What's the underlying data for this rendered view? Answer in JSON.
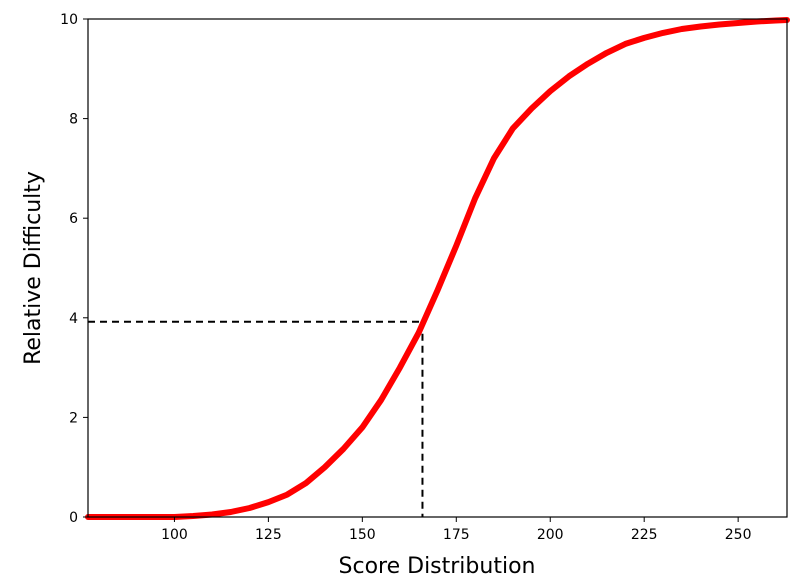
{
  "chart_data": {
    "type": "line",
    "title": "",
    "xlabel": "Score Distribution",
    "ylabel": "Relative Difficulty",
    "xlim": [
      77,
      263
    ],
    "ylim": [
      0,
      10
    ],
    "x_ticks": [
      100,
      125,
      150,
      175,
      200,
      225,
      250
    ],
    "y_ticks": [
      0,
      2,
      4,
      6,
      8,
      10
    ],
    "grid": false,
    "legend": "none",
    "series": [
      {
        "color": "#ff0000",
        "x": [
          77,
          90,
          100,
          105,
          110,
          115,
          120,
          125,
          130,
          135,
          140,
          145,
          150,
          155,
          160,
          165,
          170,
          175,
          180,
          185,
          190,
          195,
          200,
          205,
          210,
          215,
          220,
          225,
          230,
          235,
          240,
          245,
          250,
          255,
          260,
          263
        ],
        "y": [
          0.0,
          0.0,
          0.0,
          0.02,
          0.05,
          0.1,
          0.18,
          0.3,
          0.45,
          0.68,
          1.0,
          1.37,
          1.8,
          2.35,
          3.0,
          3.7,
          4.55,
          5.45,
          6.4,
          7.2,
          7.8,
          8.2,
          8.55,
          8.85,
          9.1,
          9.32,
          9.5,
          9.62,
          9.72,
          9.8,
          9.85,
          9.89,
          9.92,
          9.95,
          9.97,
          9.98
        ]
      }
    ],
    "reference": {
      "color": "#000000",
      "x": 166,
      "y": 3.92
    }
  }
}
